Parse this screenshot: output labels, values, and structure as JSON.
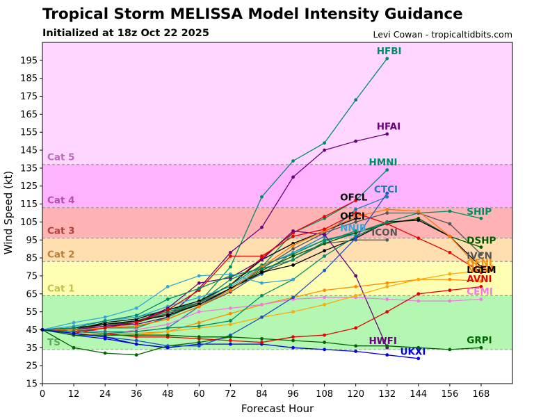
{
  "header": {
    "title": "Tropical Storm MELISSA Model Intensity Guidance",
    "subtitle": "Initialized at 18z Oct 22 2025",
    "credit": "Levi Cowan - tropicaltidbits.com"
  },
  "chart_data": {
    "type": "line",
    "xlabel": "Forecast Hour",
    "ylabel": "Wind Speed (kt)",
    "xlim": [
      0,
      180
    ],
    "ylim": [
      15,
      205
    ],
    "x_ticks": [
      0,
      12,
      24,
      36,
      48,
      60,
      72,
      84,
      96,
      108,
      120,
      132,
      144,
      156,
      168
    ],
    "y_ticks": [
      15,
      25,
      35,
      45,
      55,
      65,
      75,
      85,
      95,
      105,
      115,
      125,
      135,
      145,
      155,
      165,
      175,
      185,
      195
    ],
    "grid": false,
    "bands": [
      {
        "label": "TS",
        "from": 34,
        "to": 64,
        "fill": "#b3f7b3",
        "label_color": "#5ea85e"
      },
      {
        "label": "Cat 1",
        "from": 64,
        "to": 83,
        "fill": "#ffffb3",
        "label_color": "#c2c24a"
      },
      {
        "label": "Cat 2",
        "from": 83,
        "to": 96,
        "fill": "#ffdfb0",
        "label_color": "#b77f3a"
      },
      {
        "label": "Cat 3",
        "from": 96,
        "to": 113,
        "fill": "#ffb3b3",
        "label_color": "#b53b3b"
      },
      {
        "label": "Cat 4",
        "from": 113,
        "to": 137,
        "fill": "#ffb3ff",
        "label_color": "#b44fb4"
      },
      {
        "label": "Cat 5",
        "from": 137,
        "to": 205,
        "fill": "#ffd6ff",
        "label_color": "#b86db8"
      }
    ],
    "series": [
      {
        "name": "HFBI",
        "color": "#008b68",
        "x": [
          0,
          12,
          24,
          36,
          48,
          60,
          72,
          84,
          96,
          108,
          120,
          132
        ],
        "values": [
          45,
          44,
          46,
          46,
          52,
          60,
          80,
          119,
          139,
          149,
          173,
          196
        ]
      },
      {
        "name": "HFAI",
        "color": "#6a0080",
        "x": [
          0,
          12,
          24,
          36,
          48,
          60,
          72,
          84,
          96,
          108,
          120,
          132
        ],
        "values": [
          45,
          45,
          47,
          48,
          52,
          68,
          88,
          102,
          130,
          145,
          150,
          154
        ]
      },
      {
        "name": "HMNI",
        "color": "#008b68",
        "x": [
          0,
          12,
          24,
          36,
          48,
          60,
          72,
          84,
          96,
          108,
          120,
          132
        ],
        "values": [
          45,
          46,
          50,
          52,
          56,
          60,
          73,
          80,
          99,
          107,
          117,
          134
        ]
      },
      {
        "name": "CTCI",
        "color": "#1e78b4",
        "x": [
          0,
          12,
          24,
          36,
          48,
          60,
          72,
          84,
          96,
          108,
          120,
          132
        ],
        "values": [
          45,
          45,
          44,
          44,
          46,
          58,
          68,
          76,
          88,
          97,
          112,
          119
        ]
      },
      {
        "name": "OFCL",
        "color": "#e60000",
        "x": [
          0,
          12,
          24,
          36,
          48,
          60,
          72,
          84,
          96,
          108,
          120
        ],
        "values": [
          45,
          45,
          48,
          50,
          55,
          60,
          70,
          85,
          99,
          108,
          117
        ]
      },
      {
        "name": "OFCI",
        "color": "#000000",
        "x": [
          0,
          12,
          24,
          36,
          48,
          60,
          72,
          84,
          96,
          108,
          120
        ],
        "values": [
          45,
          45,
          49,
          51,
          56,
          61,
          70,
          84,
          93,
          100,
          107
        ]
      },
      {
        "name": "NNIB",
        "color": "#33a8d8",
        "x": [
          0,
          12,
          24,
          36,
          48,
          60,
          72,
          84,
          96,
          108,
          120
        ],
        "values": [
          45,
          47,
          50,
          52,
          58,
          63,
          69,
          80,
          88,
          95,
          98
        ]
      },
      {
        "name": "ICON",
        "color": "#555555",
        "x": [
          0,
          12,
          24,
          36,
          48,
          60,
          72,
          84,
          96,
          108,
          120,
          132
        ],
        "values": [
          45,
          44,
          46,
          47,
          51,
          58,
          66,
          77,
          84,
          93,
          95,
          95
        ]
      },
      {
        "name": "SHIP",
        "color": "#008b68",
        "x": [
          0,
          12,
          24,
          36,
          48,
          60,
          72,
          84,
          96,
          108,
          120,
          132,
          144,
          156,
          168
        ],
        "values": [
          45,
          46,
          48,
          50,
          55,
          60,
          70,
          81,
          87,
          95,
          99,
          105,
          110,
          111,
          107
        ]
      },
      {
        "name": "DSHP",
        "color": "#005a00",
        "x": [
          0,
          12,
          24,
          36,
          48,
          60,
          72,
          84,
          96,
          108,
          120,
          132,
          144,
          156,
          168
        ],
        "values": [
          45,
          46,
          48,
          49,
          54,
          59,
          68,
          78,
          86,
          93,
          99,
          104,
          107,
          97,
          91
        ]
      },
      {
        "name": "IVCN",
        "color": "#555555",
        "x": [
          0,
          12,
          24,
          36,
          48,
          60,
          72,
          84,
          96,
          108,
          120,
          132,
          144,
          156,
          168
        ],
        "values": [
          45,
          45,
          48,
          50,
          54,
          60,
          68,
          79,
          90,
          99,
          105,
          110,
          110,
          104,
          87
        ]
      },
      {
        "name": "GFNI",
        "color": "#ff8c00",
        "x": [
          0,
          12,
          24,
          36,
          48,
          60,
          72,
          84,
          96,
          108,
          120,
          132,
          144,
          156,
          168
        ],
        "values": [
          45,
          44,
          43,
          43,
          44,
          49,
          54,
          59,
          63,
          67,
          69,
          71,
          73,
          73,
          72
        ]
      },
      {
        "name": "HWFI",
        "color": "#6a0080",
        "x": [
          0,
          12,
          24,
          36,
          48,
          60,
          72,
          84,
          96,
          108,
          120,
          132
        ],
        "values": [
          45,
          45,
          47,
          49,
          57,
          71,
          74,
          84,
          100,
          98,
          75,
          35
        ]
      },
      {
        "name": "LGEM",
        "color": "#000000",
        "x": [
          0,
          12,
          24,
          36,
          48,
          60,
          72,
          84,
          96,
          108,
          120,
          132,
          144,
          156,
          168
        ],
        "values": [
          45,
          46,
          48,
          50,
          53,
          59,
          68,
          77,
          81,
          89,
          96,
          105,
          106,
          97,
          80
        ]
      },
      {
        "name": "NCSA",
        "color": "#ff7700",
        "x": [
          0,
          12,
          24,
          36,
          48,
          60,
          72,
          84,
          96,
          108,
          120,
          132,
          144,
          156,
          168
        ],
        "values": [
          45,
          45,
          46,
          47,
          51,
          58,
          67,
          80,
          92,
          100,
          108,
          112,
          111,
          97,
          78
        ]
      },
      {
        "name": "AVNI",
        "color": "#e60000",
        "x": [
          0,
          12,
          24,
          36,
          48,
          60,
          72,
          84,
          96,
          108,
          120,
          132,
          144,
          156,
          168
        ],
        "values": [
          45,
          43,
          46,
          49,
          56,
          67,
          86,
          86,
          97,
          101,
          110,
          104,
          96,
          88,
          77
        ]
      },
      {
        "name": "CEMI",
        "color": "#f57ae0",
        "x": [
          0,
          12,
          24,
          36,
          48,
          60,
          72,
          84,
          96,
          108,
          120,
          132,
          144,
          156,
          168
        ],
        "values": [
          45,
          43,
          42,
          45,
          48,
          55,
          57,
          59,
          62,
          63,
          63,
          62,
          61,
          61,
          62
        ]
      },
      {
        "name": "GRPI",
        "color": "#006400",
        "x": [
          0,
          12,
          24,
          36,
          48,
          60,
          72,
          84,
          96,
          108,
          120,
          132,
          144,
          156,
          168
        ],
        "values": [
          45,
          35,
          32,
          31,
          36,
          38,
          41,
          40,
          39,
          38,
          36,
          36,
          35,
          34,
          35
        ]
      },
      {
        "name": "UKXI",
        "color": "#0000e0",
        "x": [
          0,
          12,
          24,
          36,
          48,
          60,
          72,
          84,
          96,
          108,
          120,
          132,
          144
        ],
        "values": [
          45,
          42,
          40,
          37,
          35,
          37,
          37,
          37,
          35,
          34,
          33,
          31,
          29
        ]
      },
      {
        "name": "",
        "color": "#e60000",
        "x": [
          0,
          12,
          24,
          36,
          48,
          60,
          72,
          84,
          96,
          108,
          120,
          132,
          144,
          156,
          168
        ],
        "values": [
          45,
          44,
          43,
          41,
          41,
          40,
          39,
          38,
          41,
          42,
          46,
          55,
          65,
          67,
          69
        ]
      },
      {
        "name": "",
        "color": "#ffaa00",
        "x": [
          0,
          12,
          24,
          36,
          48,
          60,
          72,
          84,
          96,
          108,
          120,
          132,
          144,
          156,
          168
        ],
        "values": [
          45,
          43,
          42,
          42,
          44,
          46,
          48,
          52,
          55,
          59,
          64,
          69,
          73,
          76,
          78
        ]
      },
      {
        "name": "",
        "color": "#008b68",
        "x": [
          0,
          12,
          24,
          36,
          48,
          60,
          72,
          84,
          96,
          108,
          120,
          132
        ],
        "values": [
          45,
          44,
          43,
          44,
          46,
          47,
          50,
          64,
          73,
          86,
          97,
          105
        ]
      },
      {
        "name": "",
        "color": "#1e50c8",
        "x": [
          0,
          12,
          24,
          36,
          48,
          60,
          72,
          84,
          96,
          108,
          120,
          132
        ],
        "values": [
          45,
          43,
          41,
          39,
          36,
          36,
          42,
          52,
          63,
          78,
          96,
          121
        ]
      },
      {
        "name": "",
        "color": "#33a8d8",
        "x": [
          0,
          12,
          24,
          36,
          48,
          60,
          72,
          84,
          96
        ],
        "values": [
          45,
          49,
          52,
          57,
          69,
          75,
          76,
          71,
          73
        ]
      },
      {
        "name": "",
        "color": "#008b68",
        "x": [
          0,
          12,
          24,
          36,
          48,
          60,
          72,
          84,
          96,
          108,
          120
        ],
        "values": [
          45,
          46,
          50,
          53,
          62,
          68,
          75,
          79,
          84,
          94,
          100
        ]
      },
      {
        "name": "",
        "color": "#006400",
        "x": [
          0,
          12,
          24,
          36,
          48,
          60,
          72
        ],
        "values": [
          45,
          42,
          42,
          42,
          42,
          41,
          41
        ]
      },
      {
        "name": "",
        "color": "#0000e0",
        "x": [
          0,
          12,
          24,
          36,
          48
        ],
        "values": [
          45,
          43,
          41,
          37,
          35
        ]
      }
    ],
    "labels": [
      {
        "text": "HFBI",
        "color": "#008b68",
        "x": 128,
        "y": 198.5
      },
      {
        "text": "HFAI",
        "color": "#6a0080",
        "x": 128,
        "y": 156.5
      },
      {
        "text": "HMNI",
        "color": "#008b68",
        "x": 125,
        "y": 136.5
      },
      {
        "text": "CTCI",
        "color": "#1e78b4",
        "x": 127,
        "y": 121.5
      },
      {
        "text": "OFCL",
        "color": "#000000",
        "x": 114,
        "y": 117
      },
      {
        "text": "OFCI",
        "color": "#000000",
        "x": 114,
        "y": 106.5
      },
      {
        "text": "NNIB",
        "color": "#33a8d8",
        "x": 114,
        "y": 100
      },
      {
        "text": "ICON",
        "color": "#555555",
        "x": 126,
        "y": 97.5
      },
      {
        "text": "SHIP",
        "color": "#008b68",
        "x": 162.5,
        "y": 109
      },
      {
        "text": "DSHP",
        "color": "#005a00",
        "x": 162.5,
        "y": 93
      },
      {
        "text": "IVCN",
        "color": "#555555",
        "x": 162.5,
        "y": 84.5
      },
      {
        "text": "GFNI",
        "color": "#ff8c00",
        "x": 162.5,
        "y": 80.5
      },
      {
        "text": "NCSA",
        "color": "#ff7700",
        "x": 162.5,
        "y": 77
      },
      {
        "text": "LGEM",
        "color": "#000000",
        "x": 162.5,
        "y": 76.5
      },
      {
        "text": "AVNI",
        "color": "#e60000",
        "x": 162.5,
        "y": 71.5
      },
      {
        "text": "CEMI",
        "color": "#f57ae0",
        "x": 162.5,
        "y": 64.5
      },
      {
        "text": "GRPI",
        "color": "#006400",
        "x": 162.5,
        "y": 37.5
      },
      {
        "text": "HWFI",
        "color": "#6a0080",
        "x": 125,
        "y": 37
      },
      {
        "text": "UKXI",
        "color": "#0000e0",
        "x": 137,
        "y": 31
      }
    ]
  }
}
